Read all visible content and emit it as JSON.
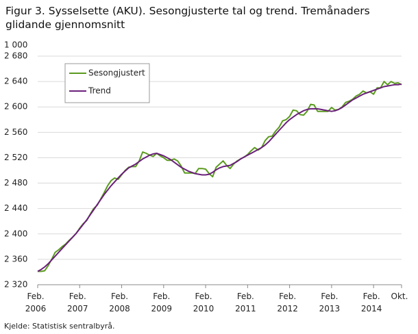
{
  "chart_data": {
    "type": "line",
    "title": "Figur 3. Sysselsette (AKU).  Sesongjusterte tal og trend. Tremånaders glidande gjennomsnitt",
    "y_unit_label": "1 000",
    "source": "Kjelde: Statistisk sentralbyrå.",
    "categories": [
      "Feb. 2006",
      null,
      null,
      null,
      null,
      null,
      null,
      null,
      null,
      null,
      null,
      null,
      "Feb. 2007",
      null,
      null,
      null,
      null,
      null,
      null,
      null,
      null,
      null,
      null,
      null,
      "Feb. 2008",
      null,
      null,
      null,
      null,
      null,
      null,
      null,
      null,
      null,
      null,
      null,
      "Feb. 2009",
      null,
      null,
      null,
      null,
      null,
      null,
      null,
      null,
      null,
      null,
      null,
      "Feb. 2010",
      null,
      null,
      null,
      null,
      null,
      null,
      null,
      null,
      null,
      null,
      null,
      "Feb. 2011",
      null,
      null,
      null,
      null,
      null,
      null,
      null,
      null,
      null,
      null,
      null,
      "Feb. 2012",
      null,
      null,
      null,
      null,
      null,
      null,
      null,
      null,
      null,
      null,
      null,
      "Feb. 2013",
      null,
      null,
      null,
      null,
      null,
      null,
      null,
      null,
      null,
      null,
      null,
      "Feb. 2014",
      null,
      null,
      null,
      null,
      null,
      null,
      null,
      "Okt."
    ],
    "series": [
      {
        "name": "Sesongjustert",
        "color": "#5a9a1e",
        "values": [
          2341,
          2341,
          2342,
          2350,
          2360,
          2371,
          2375,
          2380,
          2384,
          2390,
          2395,
          2401,
          2409,
          2416,
          2421,
          2431,
          2440,
          2445,
          2455,
          2465,
          2476,
          2484,
          2488,
          2486,
          2493,
          2500,
          2505,
          2506,
          2506,
          2515,
          2529,
          2527,
          2524,
          2522,
          2527,
          2523,
          2520,
          2516,
          2516,
          2518,
          2515,
          2507,
          2496,
          2496,
          2496,
          2495,
          2503,
          2503,
          2502,
          2495,
          2490,
          2505,
          2510,
          2515,
          2508,
          2503,
          2510,
          2515,
          2518,
          2521,
          2525,
          2531,
          2536,
          2532,
          2536,
          2547,
          2553,
          2554,
          2562,
          2568,
          2578,
          2580,
          2585,
          2595,
          2594,
          2588,
          2587,
          2593,
          2604,
          2603,
          2593,
          2593,
          2593,
          2593,
          2599,
          2595,
          2596,
          2600,
          2607,
          2609,
          2612,
          2617,
          2620,
          2625,
          2622,
          2624,
          2620,
          2630,
          2630,
          2640,
          2635,
          2640,
          2637,
          2638,
          2635
        ]
      },
      {
        "name": "Trend",
        "color": "#6a1f7a",
        "values": [
          2341,
          2344,
          2348,
          2353,
          2359,
          2365,
          2371,
          2377,
          2383,
          2389,
          2395,
          2401,
          2408,
          2415,
          2422,
          2430,
          2438,
          2446,
          2454,
          2462,
          2469,
          2476,
          2482,
          2488,
          2494,
          2499,
          2504,
          2507,
          2510,
          2514,
          2518,
          2521,
          2524,
          2526,
          2527,
          2525,
          2523,
          2520,
          2517,
          2513,
          2509,
          2505,
          2502,
          2499,
          2497,
          2495,
          2494,
          2493,
          2493,
          2494,
          2497,
          2501,
          2504,
          2506,
          2507,
          2508,
          2511,
          2514,
          2518,
          2521,
          2524,
          2527,
          2530,
          2533,
          2536,
          2540,
          2545,
          2551,
          2557,
          2563,
          2569,
          2575,
          2580,
          2584,
          2588,
          2591,
          2594,
          2596,
          2597,
          2597,
          2597,
          2596,
          2595,
          2594,
          2593,
          2594,
          2596,
          2599,
          2603,
          2607,
          2611,
          2614,
          2617,
          2620,
          2622,
          2624,
          2626,
          2628,
          2630,
          2632,
          2633,
          2634,
          2635,
          2635,
          2636
        ]
      }
    ],
    "ylim": [
      2320,
      2680
    ],
    "yticks": [
      {
        "value": 2320,
        "label": "2 320"
      },
      {
        "value": 2360,
        "label": "2 360"
      },
      {
        "value": 2400,
        "label": "2 400"
      },
      {
        "value": 2440,
        "label": "2 440"
      },
      {
        "value": 2480,
        "label": "2 480"
      },
      {
        "value": 2520,
        "label": "2 520"
      },
      {
        "value": 2560,
        "label": "2 560"
      },
      {
        "value": 2600,
        "label": "2 600"
      },
      {
        "value": 2640,
        "label": "2 640"
      },
      {
        "value": 2680,
        "label": "2 680"
      }
    ],
    "grid": true
  }
}
